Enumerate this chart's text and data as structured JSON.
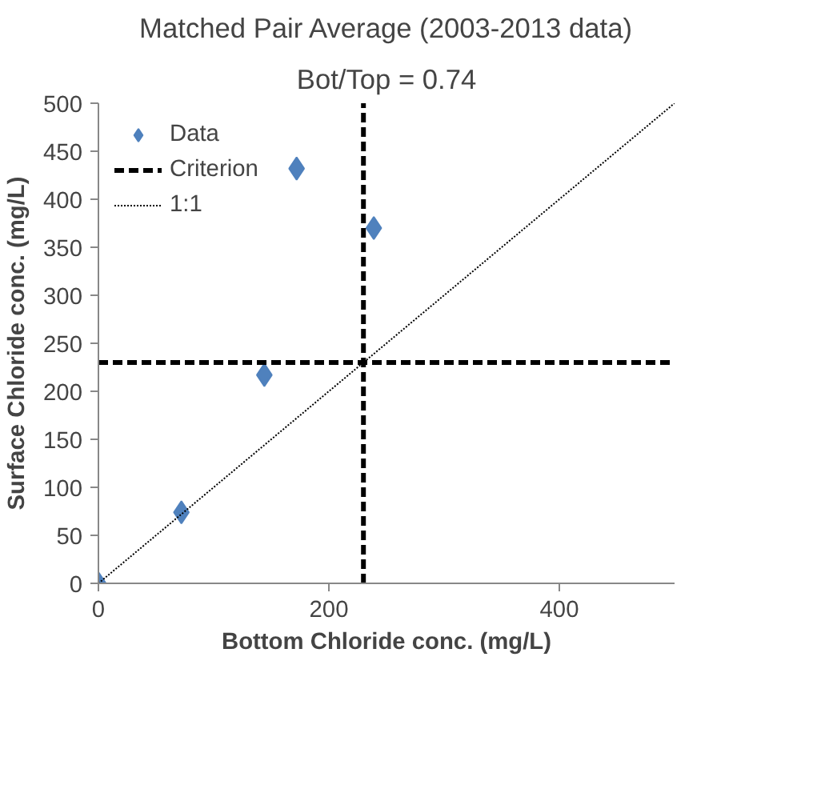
{
  "chart_data": {
    "type": "scatter",
    "title": "Matched Pair Average (2003-2013 data)",
    "subtitle": "Bot/Top = 0.74",
    "xlabel": "Bottom Chloride conc. (mg/L)",
    "ylabel": "Surface Chloride conc. (mg/L)",
    "x": [
      0,
      72,
      144,
      172,
      239
    ],
    "series": [
      {
        "name": "Data",
        "color": "#4f81bd",
        "values": [
          0,
          74,
          217,
          432,
          370
        ],
        "marker": "diamond"
      },
      {
        "name": "Criterion",
        "type": "line",
        "color": "#000000",
        "line_style": "dashed",
        "x": [
          230,
          230,
          null,
          0,
          500
        ],
        "values": [
          0,
          500,
          null,
          230,
          230
        ]
      },
      {
        "name": "1:1",
        "type": "line",
        "color": "#000000",
        "line_style": "dotted",
        "x": [
          0,
          500
        ],
        "values": [
          0,
          500
        ]
      }
    ],
    "xlim": [
      0,
      500
    ],
    "ylim": [
      0,
      500
    ],
    "xticks": [
      0,
      200,
      400
    ],
    "yticks": [
      0,
      50,
      100,
      150,
      200,
      250,
      300,
      350,
      400,
      450,
      500
    ],
    "grid": false,
    "legend": "top left"
  }
}
